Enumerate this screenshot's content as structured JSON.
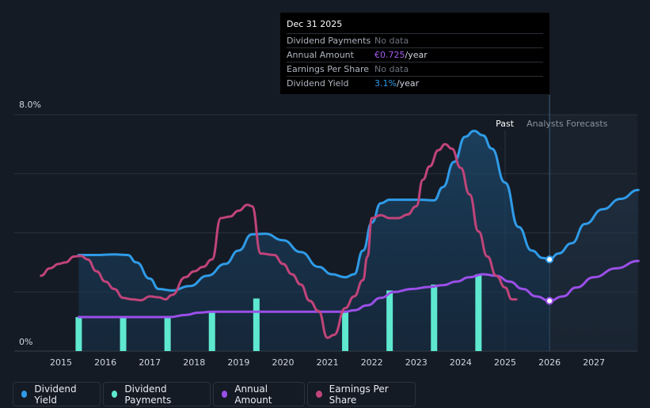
{
  "tooltip": {
    "date": "Dec 31 2025",
    "rows": [
      {
        "label": "Dividend Payments",
        "value": "No data",
        "unit": ""
      },
      {
        "label": "Annual Amount",
        "value": "€0.725",
        "unit": "/year",
        "color": "#a45bf0"
      },
      {
        "label": "Earnings Per Share",
        "value": "No data",
        "unit": ""
      },
      {
        "label": "Dividend Yield",
        "value": "3.1%",
        "unit": "/year",
        "color": "#2f9be8"
      }
    ]
  },
  "legend": [
    {
      "label": "Dividend Yield",
      "color": "#2f9be8"
    },
    {
      "label": "Dividend Payments",
      "color": "#5ee8d0"
    },
    {
      "label": "Annual Amount",
      "color": "#9b4fe8"
    },
    {
      "label": "Earnings Per Share",
      "color": "#c0447a"
    }
  ],
  "chart_data": {
    "type": "line",
    "title": "",
    "xlabel": "",
    "ylabel": "",
    "y_tick_labels": [
      "8.0%",
      "0%"
    ],
    "ylim": [
      0,
      8
    ],
    "xlim": [
      2014.5,
      2028.0
    ],
    "x_ticks": [
      2015,
      2016,
      2017,
      2018,
      2019,
      2020,
      2021,
      2022,
      2023,
      2024,
      2025,
      2026,
      2027
    ],
    "x_tick_labels": [
      "2015",
      "2016",
      "2017",
      "2018",
      "2019",
      "2020",
      "2021",
      "2022",
      "2023",
      "2024",
      "2025",
      "2026",
      "2027"
    ],
    "past_label": "Past",
    "forecast_label": "Analysts Forecasts",
    "forecast_start": 2026.0,
    "series": [
      {
        "name": "Dividend Yield",
        "color": "#2f9be8",
        "x": [
          2015.4,
          2015.8,
          2016.2,
          2016.5,
          2016.7,
          2017.0,
          2017.2,
          2017.5,
          2017.9,
          2018.3,
          2018.7,
          2019.0,
          2019.3,
          2019.6,
          2020.0,
          2020.4,
          2020.8,
          2021.1,
          2021.4,
          2021.6,
          2021.8,
          2022.0,
          2022.2,
          2022.4,
          2022.8,
          2023.1,
          2023.4,
          2023.6,
          2023.85,
          2024.1,
          2024.3,
          2024.5,
          2024.7,
          2025.0,
          2025.3,
          2025.6,
          2025.85,
          2026.0,
          2026.2,
          2026.5,
          2026.8,
          2027.2,
          2027.6,
          2028.0
        ],
        "y": [
          3.25,
          3.25,
          3.27,
          3.25,
          3.0,
          2.45,
          2.1,
          2.05,
          2.2,
          2.55,
          2.95,
          3.4,
          3.95,
          3.97,
          3.75,
          3.35,
          2.85,
          2.6,
          2.5,
          2.6,
          3.4,
          4.35,
          5.0,
          5.12,
          5.12,
          5.12,
          5.1,
          5.55,
          6.4,
          7.25,
          7.45,
          7.3,
          6.85,
          5.7,
          4.2,
          3.4,
          3.15,
          3.1,
          3.3,
          3.65,
          4.3,
          4.8,
          5.15,
          5.45
        ]
      },
      {
        "name": "Annual Amount",
        "color": "#9b4fe8",
        "x": [
          2015.4,
          2016.0,
          2016.6,
          2017.1,
          2017.45,
          2017.8,
          2018.1,
          2018.4,
          2018.8,
          2019.2,
          2019.5,
          2020.0,
          2020.5,
          2021.0,
          2021.4,
          2021.6,
          2021.9,
          2022.2,
          2022.5,
          2022.9,
          2023.3,
          2023.6,
          2023.9,
          2024.2,
          2024.5,
          2024.8,
          2025.1,
          2025.4,
          2025.7,
          2026.0,
          2026.3,
          2026.6,
          2027.0,
          2027.5,
          2028.0
        ],
        "y": [
          1.15,
          1.15,
          1.15,
          1.15,
          1.15,
          1.22,
          1.3,
          1.33,
          1.33,
          1.33,
          1.33,
          1.33,
          1.33,
          1.33,
          1.33,
          1.38,
          1.55,
          1.8,
          2.0,
          2.1,
          2.17,
          2.23,
          2.35,
          2.5,
          2.6,
          2.55,
          2.35,
          2.1,
          1.85,
          1.7,
          1.85,
          2.15,
          2.5,
          2.8,
          3.05
        ]
      },
      {
        "name": "Earnings Per Share",
        "color": "#c0447a",
        "x": [
          2014.55,
          2014.75,
          2014.95,
          2015.1,
          2015.3,
          2015.45,
          2015.6,
          2015.8,
          2016.0,
          2016.2,
          2016.4,
          2016.6,
          2016.8,
          2017.0,
          2017.2,
          2017.35,
          2017.5,
          2017.8,
          2018.0,
          2018.2,
          2018.4,
          2018.6,
          2018.8,
          2019.0,
          2019.2,
          2019.3,
          2019.5,
          2019.8,
          2020.0,
          2020.2,
          2020.4,
          2020.6,
          2020.8,
          2021.0,
          2021.15,
          2021.4,
          2021.6,
          2021.8,
          2021.9,
          2022.0,
          2022.2,
          2022.4,
          2022.6,
          2022.8,
          2023.0,
          2023.15,
          2023.3,
          2023.5,
          2023.65,
          2023.8,
          2024.0,
          2024.2,
          2024.4,
          2024.6,
          2024.8,
          2025.0,
          2025.15,
          2025.25
        ],
        "y": [
          2.55,
          2.8,
          2.95,
          3.0,
          3.2,
          3.22,
          3.1,
          2.7,
          2.35,
          2.1,
          1.8,
          1.75,
          1.72,
          1.85,
          1.82,
          1.75,
          1.9,
          2.5,
          2.7,
          2.85,
          3.1,
          4.5,
          4.55,
          4.75,
          4.95,
          4.9,
          3.3,
          3.25,
          2.95,
          2.6,
          2.25,
          1.7,
          1.35,
          0.45,
          0.55,
          1.45,
          1.85,
          2.4,
          3.2,
          4.5,
          4.6,
          4.5,
          4.5,
          4.62,
          4.9,
          5.8,
          6.25,
          6.8,
          7.0,
          6.85,
          6.2,
          5.3,
          4.05,
          3.2,
          2.55,
          2.15,
          1.75,
          1.75
        ]
      }
    ],
    "bars": {
      "name": "Dividend Payments",
      "color": "#5ee8d0",
      "x": [
        2015.4,
        2016.4,
        2017.4,
        2018.4,
        2019.4,
        2021.4,
        2022.4,
        2023.4,
        2024.4
      ],
      "values": [
        1.15,
        1.15,
        1.15,
        1.33,
        1.78,
        1.33,
        2.05,
        2.25,
        2.6
      ]
    },
    "markers": [
      {
        "series": "Dividend Yield",
        "x": 2026.0,
        "y": 3.1
      },
      {
        "series": "Annual Amount",
        "x": 2026.0,
        "y": 1.7
      }
    ]
  }
}
